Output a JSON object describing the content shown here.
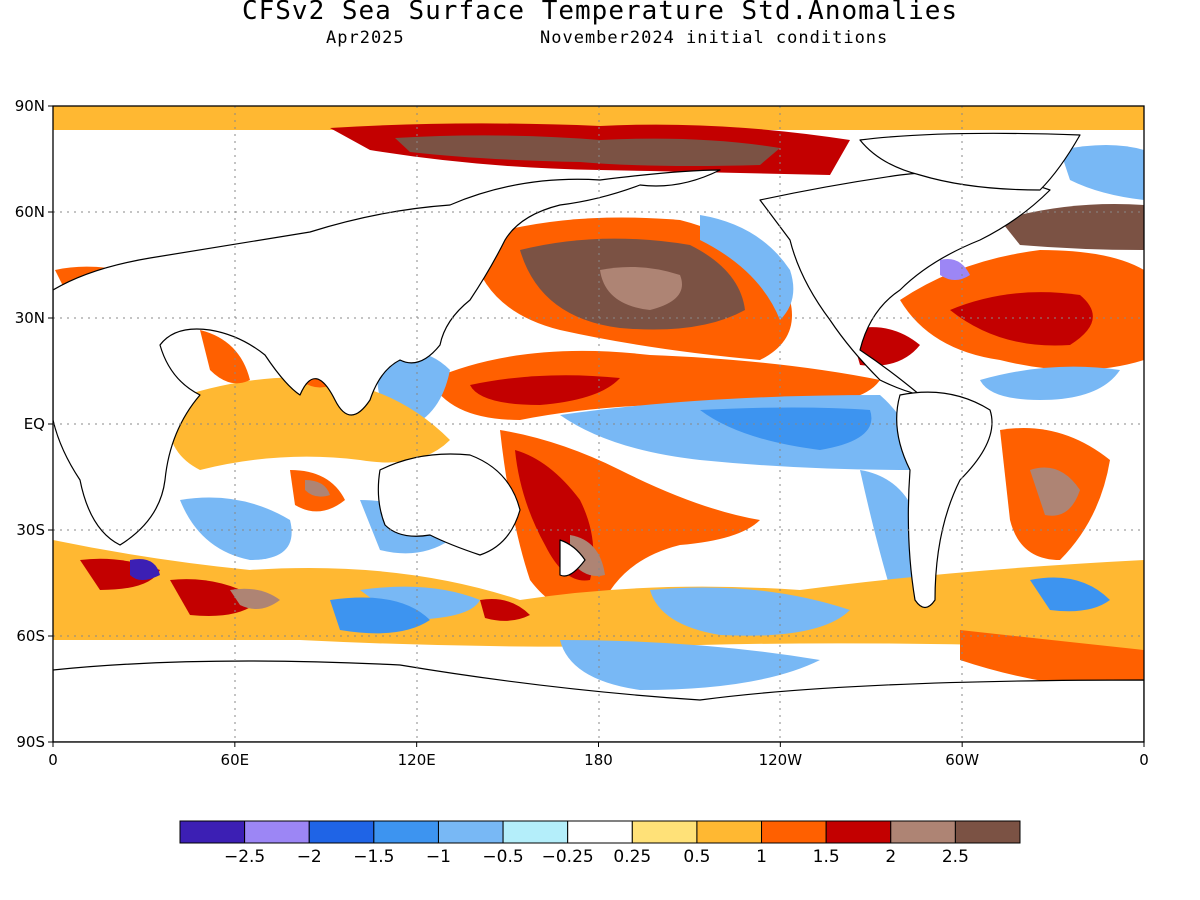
{
  "title": "CFSv2 Sea Surface Temperature Std.Anomalies",
  "subtitle_left": "Apr2025",
  "subtitle_right": "November2024 initial conditions",
  "map": {
    "lon_ticks": [
      "0",
      "60E",
      "120E",
      "180",
      "120W",
      "60W",
      "0"
    ],
    "lat_ticks": [
      "90N",
      "60N",
      "30N",
      "EQ",
      "30S",
      "60S",
      "90S"
    ]
  },
  "colorbar": {
    "colors": [
      "#3c1fb4",
      "#9c86f5",
      "#1f64e6",
      "#3d94f0",
      "#78b8f5",
      "#b4eefa",
      "#ffffff",
      "#ffe178",
      "#ffb832",
      "#ff6000",
      "#c30000",
      "#ae8474",
      "#7b5244"
    ],
    "labels": [
      "-2.5",
      "-2",
      "-1.5",
      "-1",
      "-0.5",
      "-0.25",
      "0.25",
      "0.5",
      "1",
      "1.5",
      "2",
      "2.5"
    ]
  }
}
